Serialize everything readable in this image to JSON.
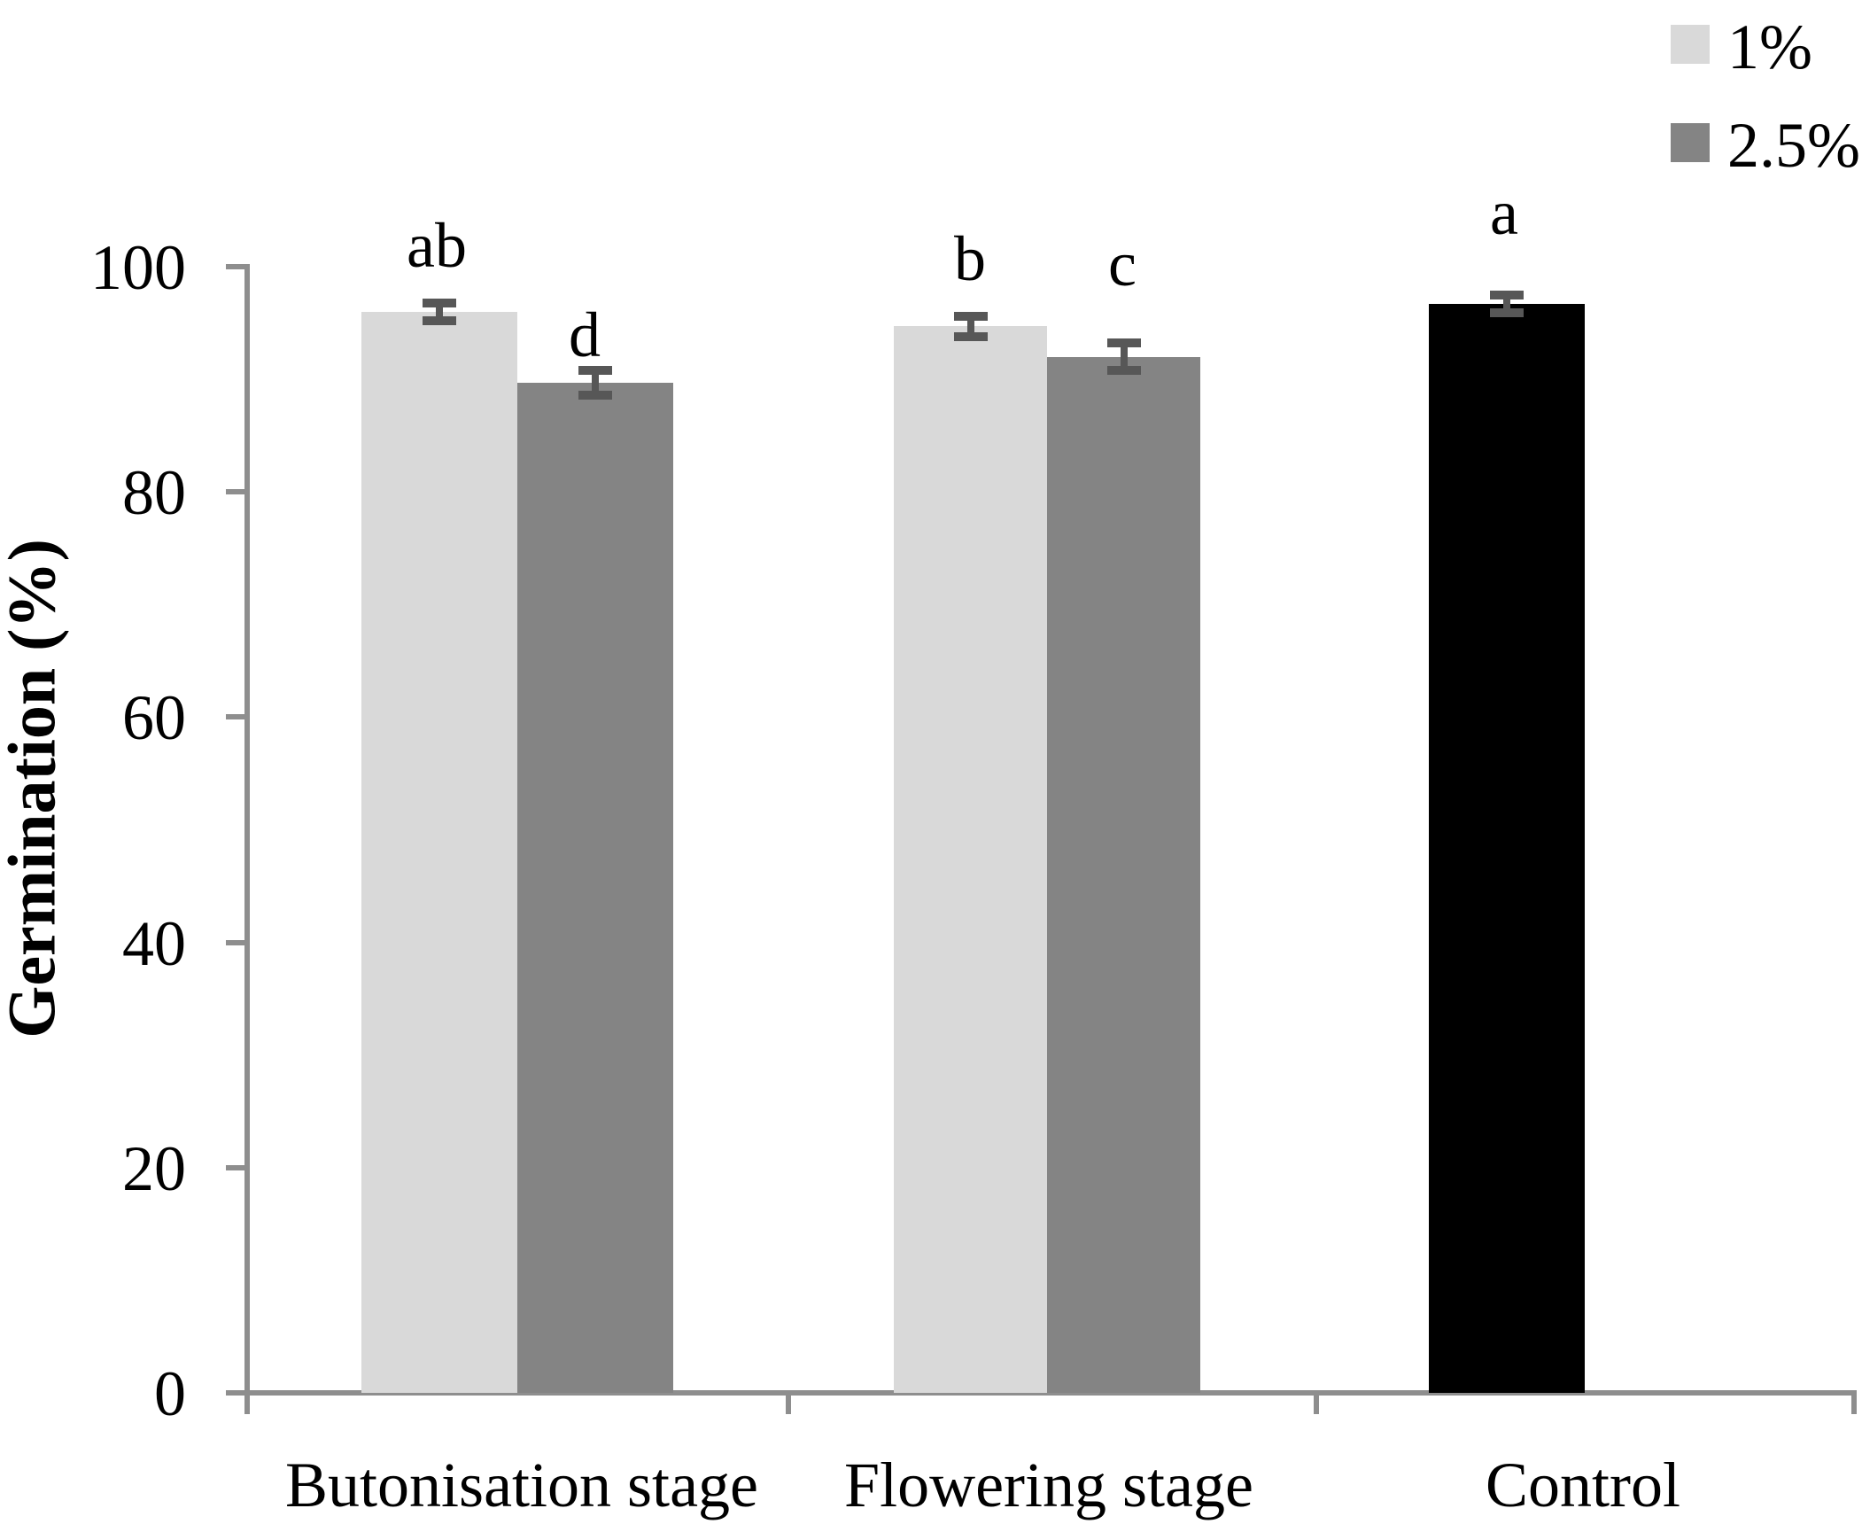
{
  "figure": {
    "background": "#ffffff",
    "axis_color": "#8e8e8e",
    "error_bar_color": "#575757"
  },
  "legend": {
    "position": "top-right",
    "items": [
      {
        "label": "1%",
        "color": "#d9d9d9"
      },
      {
        "label": "2.5%",
        "color": "#848484"
      }
    ]
  },
  "chart_data": {
    "type": "bar",
    "title": "",
    "xlabel": "",
    "ylabel": "Germination (%)",
    "ylim": [
      0,
      100
    ],
    "yticks": [
      0,
      20,
      40,
      60,
      80,
      100
    ],
    "grid": false,
    "legend_position": "top-right",
    "categories": [
      "Butonisation stage",
      "Flowering stage",
      "Control"
    ],
    "series": [
      {
        "name": "1%",
        "color": "#d9d9d9",
        "values": [
          96.0,
          94.7,
          null
        ]
      },
      {
        "name": "2.5%",
        "color": "#848484",
        "values": [
          89.7,
          92.0,
          null
        ]
      },
      {
        "name": "Control",
        "color": "#000000",
        "values": [
          null,
          null,
          96.7
        ]
      }
    ],
    "bars": [
      {
        "category": "Butonisation stage",
        "series": "1%",
        "value": 96.0,
        "error": 0.8,
        "letter": "ab",
        "color": "#d9d9d9"
      },
      {
        "category": "Butonisation stage",
        "series": "2.5%",
        "value": 89.7,
        "error": 1.1,
        "letter": "d",
        "color": "#848484"
      },
      {
        "category": "Flowering stage",
        "series": "1%",
        "value": 94.7,
        "error": 0.9,
        "letter": "b",
        "color": "#d9d9d9"
      },
      {
        "category": "Flowering stage",
        "series": "2.5%",
        "value": 92.0,
        "error": 1.2,
        "letter": "c",
        "color": "#848484"
      },
      {
        "category": "Control",
        "series": "Control",
        "value": 96.7,
        "error": 0.8,
        "letter": "a",
        "color": "#000000"
      }
    ]
  }
}
